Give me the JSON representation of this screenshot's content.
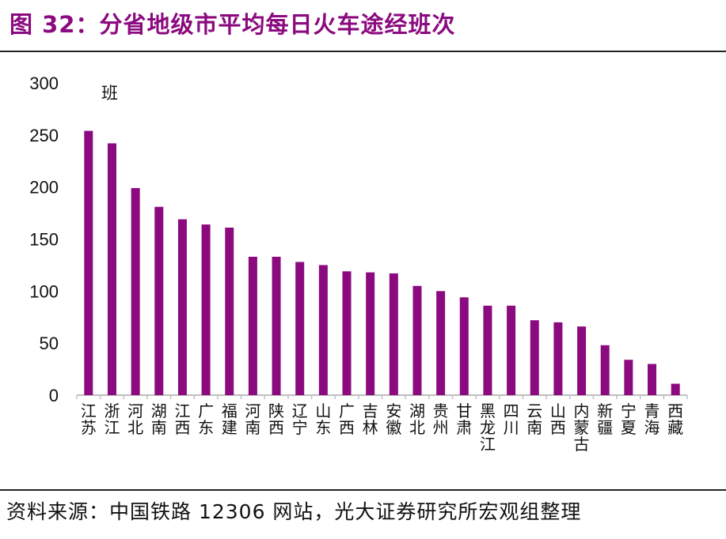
{
  "title": "图 32：分省地级市平均每日火车途经班次",
  "source": "资料来源：中国铁路 12306 网站，光大证券研究所宏观组整理",
  "colors": {
    "bar": "#8B0A7F",
    "title": "#8B0A7F",
    "axis": "#BFBFBF"
  },
  "chart_data": {
    "type": "bar",
    "title": "",
    "ylabel": "班",
    "xlabel": "",
    "ylim": [
      0,
      300
    ],
    "yticks": [
      0,
      50,
      100,
      150,
      200,
      250,
      300
    ],
    "grid": false,
    "categories": [
      "江苏",
      "浙江",
      "河北",
      "湖南",
      "江西",
      "广东",
      "福建",
      "河南",
      "陕西",
      "辽宁",
      "山东",
      "广西",
      "吉林",
      "安徽",
      "湖北",
      "贵州",
      "甘肃",
      "黑龙江",
      "四川",
      "云南",
      "山西",
      "内蒙古",
      "新疆",
      "宁夏",
      "青海",
      "西藏"
    ],
    "values": [
      254,
      242,
      199,
      181,
      169,
      164,
      161,
      133,
      133,
      128,
      125,
      119,
      118,
      117,
      105,
      100,
      94,
      86,
      86,
      72,
      70,
      66,
      48,
      34,
      30,
      11
    ]
  }
}
